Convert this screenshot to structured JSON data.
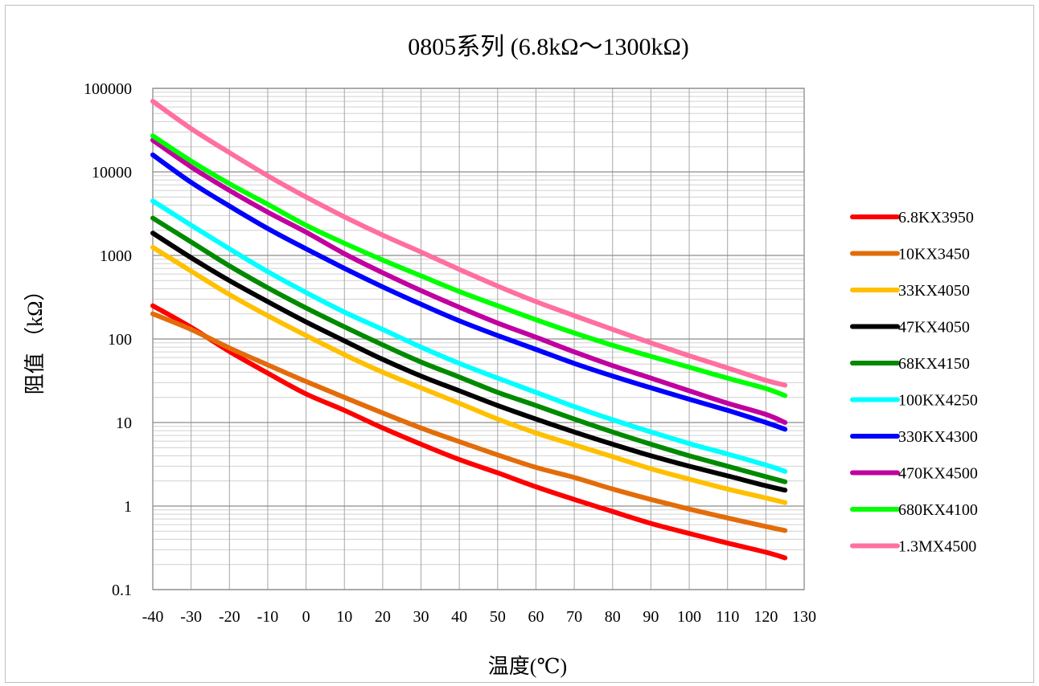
{
  "chart_data": {
    "type": "line",
    "title": "0805系列 (6.8kΩ～1300kΩ)",
    "xlabel": "温度(℃)",
    "ylabel": "阻值 （kΩ）",
    "x_ticks": [
      "-40",
      "-30",
      "-20",
      "-10",
      "0",
      "10",
      "20",
      "30",
      "40",
      "50",
      "60",
      "70",
      "80",
      "90",
      "100",
      "110",
      "120",
      "130"
    ],
    "y_ticks": [
      "0.1",
      "1",
      "10",
      "100",
      "1000",
      "10000",
      "100000"
    ],
    "xlim": [
      -40,
      130
    ],
    "ylim": [
      0.1,
      100000
    ],
    "yscale": "log",
    "grid": true,
    "legend_position": "right",
    "x": [
      -40,
      -30,
      -20,
      -10,
      0,
      10,
      20,
      30,
      40,
      50,
      60,
      70,
      80,
      90,
      100,
      110,
      120,
      125
    ],
    "series": [
      {
        "name": "6.8KX3950",
        "color": "#ff0000",
        "values": [
          250,
          138,
          71,
          39,
          22,
          14,
          8.6,
          5.5,
          3.6,
          2.5,
          1.7,
          1.2,
          0.86,
          0.62,
          0.47,
          0.36,
          0.28,
          0.24
        ]
      },
      {
        "name": "10KX3450",
        "color": "#e36c0a",
        "values": [
          200,
          130,
          78,
          49,
          31,
          20,
          13,
          8.6,
          5.9,
          4.1,
          2.9,
          2.2,
          1.6,
          1.2,
          0.92,
          0.72,
          0.57,
          0.51
        ]
      },
      {
        "name": "33KX4050",
        "color": "#ffc000",
        "values": [
          1250,
          650,
          340,
          190,
          110,
          65,
          40,
          26,
          17,
          11,
          7.5,
          5.4,
          3.9,
          2.8,
          2.1,
          1.6,
          1.25,
          1.1
        ]
      },
      {
        "name": "47KX4050",
        "color": "#000000",
        "values": [
          1850,
          940,
          500,
          280,
          160,
          95,
          57,
          36,
          24,
          16,
          11,
          7.7,
          5.5,
          4.0,
          3.0,
          2.3,
          1.75,
          1.55
        ]
      },
      {
        "name": "68KX4150",
        "color": "#008a00",
        "values": [
          2800,
          1450,
          750,
          410,
          235,
          140,
          85,
          53,
          35,
          23,
          16,
          11,
          7.7,
          5.5,
          4.0,
          3.0,
          2.25,
          1.95
        ]
      },
      {
        "name": "100KX4250",
        "color": "#00ffff",
        "values": [
          4500,
          2300,
          1200,
          640,
          360,
          210,
          130,
          80,
          51,
          34,
          23,
          15.5,
          10.8,
          7.7,
          5.6,
          4.2,
          3.1,
          2.6
        ]
      },
      {
        "name": "330KX4300",
        "color": "#0000ff",
        "values": [
          16000,
          7500,
          3900,
          2100,
          1200,
          700,
          420,
          260,
          165,
          110,
          75,
          51,
          36,
          26,
          19,
          14,
          10,
          8.3
        ]
      },
      {
        "name": "470KX4500",
        "color": "#c000a0",
        "values": [
          24000,
          11500,
          6000,
          3300,
          1900,
          1050,
          620,
          380,
          240,
          155,
          105,
          70,
          48,
          34,
          24,
          17,
          12.5,
          10
        ]
      },
      {
        "name": "680KX4100",
        "color": "#00ff00",
        "values": [
          27000,
          13500,
          7200,
          4100,
          2300,
          1400,
          880,
          570,
          370,
          250,
          170,
          118,
          84,
          62,
          46,
          34,
          25.5,
          21
        ]
      },
      {
        "name": "1.3MX4500",
        "color": "#ff6fa0",
        "values": [
          70000,
          33000,
          17000,
          9000,
          5000,
          2900,
          1750,
          1100,
          680,
          430,
          280,
          190,
          130,
          90,
          63,
          45,
          32,
          28
        ]
      }
    ]
  }
}
